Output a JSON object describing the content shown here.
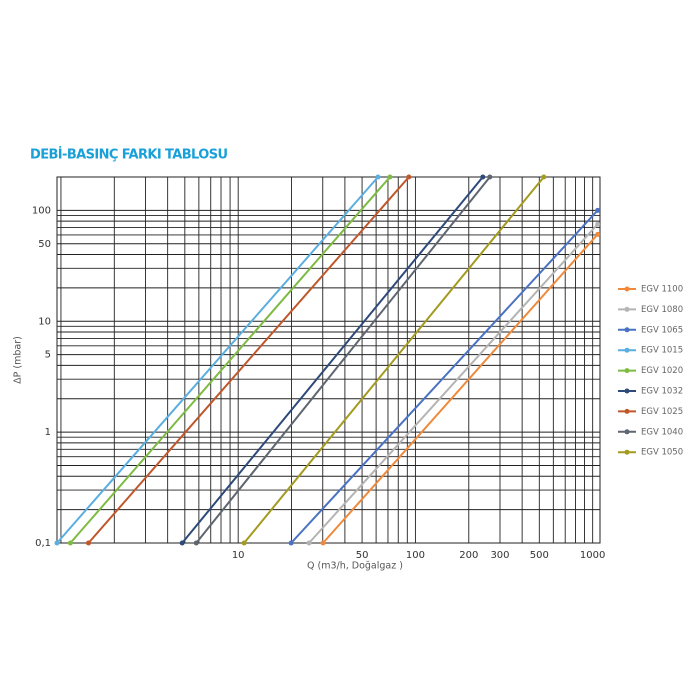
{
  "chart_data": {
    "type": "line",
    "title": "DEBİ-BASINÇ FARKI TABLOSU",
    "x_label": "Q (m3/h, Doğalgaz )",
    "y_label": "ΔP (mbar)",
    "log_x": true,
    "log_y": true,
    "grid": true,
    "xlim": [
      0.95,
      1100
    ],
    "ylim": [
      0.1,
      200
    ],
    "xticks": [
      10,
      50,
      100,
      200,
      300,
      500,
      1000
    ],
    "yticks": [
      {
        "value": 0.1,
        "label": "0,1"
      },
      1,
      5,
      10,
      50,
      100
    ],
    "xgrid": [
      1,
      2,
      3,
      4,
      5,
      6,
      7,
      8,
      9,
      10,
      20,
      30,
      40,
      50,
      60,
      70,
      80,
      90,
      100,
      200,
      300,
      400,
      500,
      600,
      700,
      800,
      900,
      1000
    ],
    "ygrid": [
      0.2,
      0.3,
      0.4,
      0.5,
      0.6,
      0.7,
      0.8,
      0.9,
      1,
      2,
      3,
      4,
      5,
      6,
      7,
      8,
      9,
      10,
      20,
      30,
      40,
      50,
      60,
      70,
      80,
      90,
      100
    ],
    "legend": "right",
    "series": [
      {
        "name": "EGV 1100",
        "color": "#f08a3a",
        "x": [
          30.1,
          1067
        ],
        "values": [
          0.1,
          60.8
        ]
      },
      {
        "name": "EGV 1080",
        "color": "#b4b4b4",
        "x": [
          25.1,
          1067
        ],
        "values": [
          0.1,
          75
        ]
      },
      {
        "name": "EGV 1065",
        "color": "#4a72c4",
        "x": [
          19.9,
          1067
        ],
        "values": [
          0.1,
          100
        ]
      },
      {
        "name": "EGV 1015",
        "color": "#5aaee0",
        "x": [
          0.95,
          61.5
        ],
        "values": [
          0.1,
          200
        ]
      },
      {
        "name": "EGV 1020",
        "color": "#7dbb42",
        "x": [
          1.13,
          71.8
        ],
        "values": [
          0.1,
          200
        ]
      },
      {
        "name": "EGV 1032",
        "color": "#2e4a7a",
        "x": [
          4.83,
          240
        ],
        "values": [
          0.1,
          200
        ]
      },
      {
        "name": "EGV 1025",
        "color": "#c0562a",
        "x": [
          1.43,
          91.8
        ],
        "values": [
          0.1,
          200
        ]
      },
      {
        "name": "EGV 1040",
        "color": "#5f6670",
        "x": [
          5.8,
          263
        ],
        "values": [
          0.1,
          200
        ]
      },
      {
        "name": "EGV 1050",
        "color": "#a39a1e",
        "x": [
          10.8,
          530
        ],
        "values": [
          0.1,
          200
        ]
      }
    ]
  }
}
